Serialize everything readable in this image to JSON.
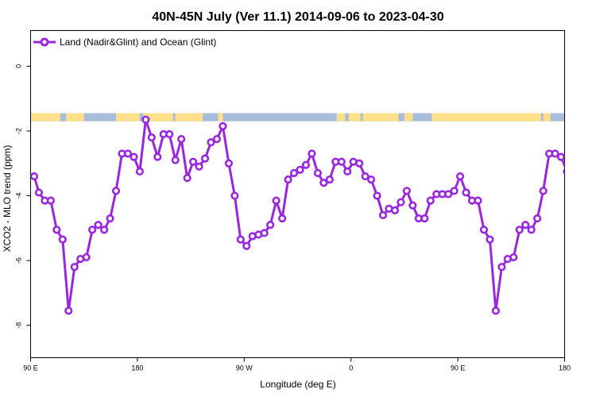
{
  "title": "40N-45N July (Ver 11.1)   2014-09-06 to 2023-04-30",
  "chart_data": {
    "type": "line",
    "title": "40N-45N July (Ver 11.1)   2014-09-06 to 2023-04-30",
    "xlabel": "Longitude (deg E)",
    "ylabel": "XCO2 - MLO trend (ppm)",
    "xlim": [
      90,
      540
    ],
    "ylim": [
      -9,
      1.1
    ],
    "x_ticks": [
      {
        "value": 90,
        "label": "90 E"
      },
      {
        "value": 180,
        "label": "180"
      },
      {
        "value": 270,
        "label": "90 W"
      },
      {
        "value": 360,
        "label": "0"
      },
      {
        "value": 450,
        "label": "90 E"
      },
      {
        "value": 540,
        "label": "180"
      }
    ],
    "y_ticks": [
      {
        "value": 0,
        "label": "0"
      },
      {
        "value": -2,
        "label": "-2"
      },
      {
        "value": -4,
        "label": "-4"
      },
      {
        "value": -6,
        "label": "-6"
      },
      {
        "value": -8,
        "label": "-8"
      }
    ],
    "grid": false,
    "legend_position": "top-left",
    "land_ocean_band": {
      "y_range": [
        -1.7,
        -1.45
      ],
      "ocean_color": "#a8bcdc",
      "land_color": "#fde089",
      "land_intervals": [
        [
          90,
          115
        ],
        [
          120,
          135
        ],
        [
          162,
          182
        ],
        [
          185,
          210
        ],
        [
          212,
          235
        ],
        [
          248,
          252
        ],
        [
          348,
          355
        ],
        [
          358,
          368
        ],
        [
          370,
          400
        ],
        [
          405,
          412
        ],
        [
          428,
          520
        ],
        [
          522,
          528
        ]
      ]
    },
    "series": [
      {
        "name": "Land (Nadir&Glint) and Ocean (Glint)",
        "color": "#9a27e0",
        "x": [
          93,
          97,
          102,
          107,
          112,
          117,
          122,
          127,
          132,
          137,
          142,
          147,
          152,
          157,
          162,
          167,
          172,
          177,
          182,
          187,
          192,
          197,
          202,
          207,
          212,
          217,
          222,
          227,
          232,
          237,
          242,
          247,
          252,
          257,
          262,
          267,
          272,
          277,
          282,
          287,
          292,
          297,
          302,
          307,
          312,
          317,
          322,
          327,
          332,
          337,
          342,
          347,
          352,
          357,
          362,
          367,
          372,
          377,
          382,
          387,
          392,
          397,
          402,
          407,
          412,
          417,
          422,
          427,
          432,
          437,
          442,
          447,
          452,
          457,
          462,
          467,
          472,
          477,
          482,
          487,
          492,
          497,
          502,
          507,
          512,
          517,
          522,
          527,
          532,
          537,
          542
        ],
        "y": [
          -3.4,
          -3.9,
          -4.15,
          -4.15,
          -5.05,
          -5.35,
          -7.55,
          -6.2,
          -5.95,
          -5.9,
          -5.05,
          -4.9,
          -5.05,
          -4.7,
          -3.85,
          -2.7,
          -2.7,
          -2.8,
          -3.25,
          -1.65,
          -2.2,
          -2.8,
          -2.1,
          -2.1,
          -2.9,
          -2.25,
          -3.45,
          -2.95,
          -3.1,
          -2.85,
          -2.35,
          -2.25,
          -1.85,
          -3.0,
          -4.0,
          -5.35,
          -5.55,
          -5.25,
          -5.2,
          -5.15,
          -4.9,
          -4.15,
          -4.7,
          -3.5,
          -3.3,
          -3.2,
          -3.05,
          -2.7,
          -3.3,
          -3.6,
          -3.5,
          -2.95,
          -2.95,
          -3.25,
          -2.95,
          -3.0,
          -3.4,
          -3.5,
          -4.0,
          -4.6,
          -4.4,
          -4.45,
          -4.2,
          -3.85,
          -4.3,
          -4.7,
          -4.7,
          -4.15,
          -3.95,
          -3.95,
          -3.95,
          -3.85,
          -3.4,
          -3.9,
          -4.15,
          -4.15,
          -5.05,
          -5.35,
          -7.55,
          -6.2,
          -5.95,
          -5.9,
          -5.05,
          -4.9,
          -5.05,
          -4.7,
          -3.85,
          -2.7,
          -2.7,
          -2.8,
          -3.25
        ]
      }
    ]
  }
}
